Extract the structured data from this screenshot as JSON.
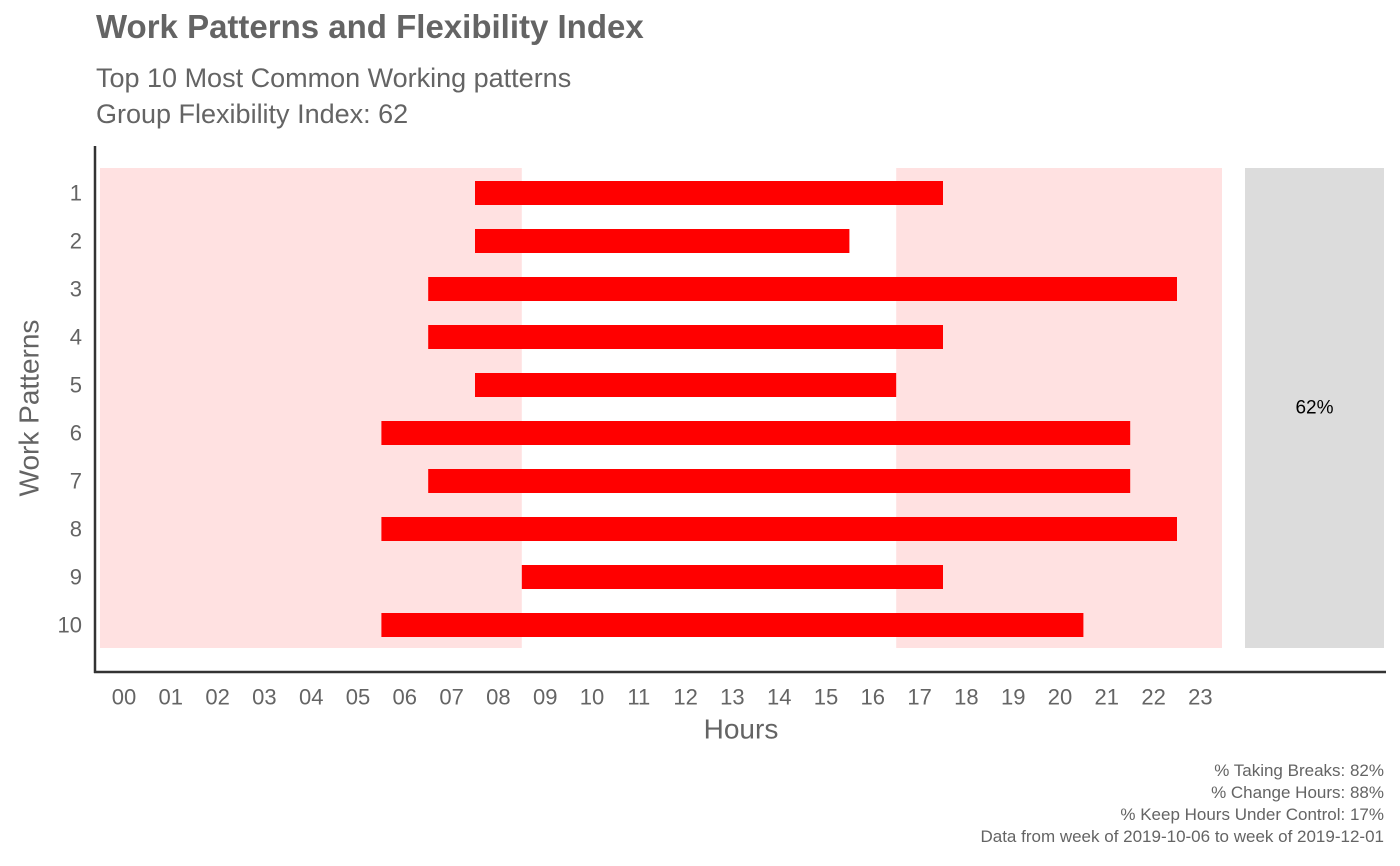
{
  "chart_data": {
    "type": "bar",
    "title": "Work Patterns and Flexibility Index",
    "subtitle_lines": [
      "Top 10 Most Common Working patterns",
      "Group Flexibility Index: 62"
    ],
    "xlabel": "Hours",
    "ylabel": "Work Patterns",
    "x_ticks": [
      "00",
      "01",
      "02",
      "03",
      "04",
      "05",
      "06",
      "07",
      "08",
      "09",
      "10",
      "11",
      "12",
      "13",
      "14",
      "15",
      "16",
      "17",
      "18",
      "19",
      "20",
      "21",
      "22",
      "23"
    ],
    "patterns": [
      {
        "label": "1",
        "start": 7,
        "end": 17
      },
      {
        "label": "2",
        "start": 7,
        "end": 15
      },
      {
        "label": "3",
        "start": 6,
        "end": 22
      },
      {
        "label": "4",
        "start": 6,
        "end": 17
      },
      {
        "label": "5",
        "start": 7,
        "end": 16
      },
      {
        "label": "6",
        "start": 5,
        "end": 21
      },
      {
        "label": "7",
        "start": 6,
        "end": 21
      },
      {
        "label": "8",
        "start": 5,
        "end": 22
      },
      {
        "label": "9",
        "start": 8,
        "end": 17
      },
      {
        "label": "10",
        "start": 5,
        "end": 20
      }
    ],
    "shaded_hours_before": 8,
    "shaded_hours_after": 16,
    "side_panel_label": "62%",
    "caption_lines": [
      "% Taking Breaks: 82%",
      "% Change Hours: 88%",
      "% Keep Hours Under Control: 17%",
      "Data from week of 2019-10-06 to week of 2019-12-01"
    ],
    "colors": {
      "bar": "#ff0000",
      "shade": "#ffe1e1",
      "panel": "#dcdcdc",
      "text": "#646464",
      "axis": "#333333"
    },
    "grid": false
  }
}
